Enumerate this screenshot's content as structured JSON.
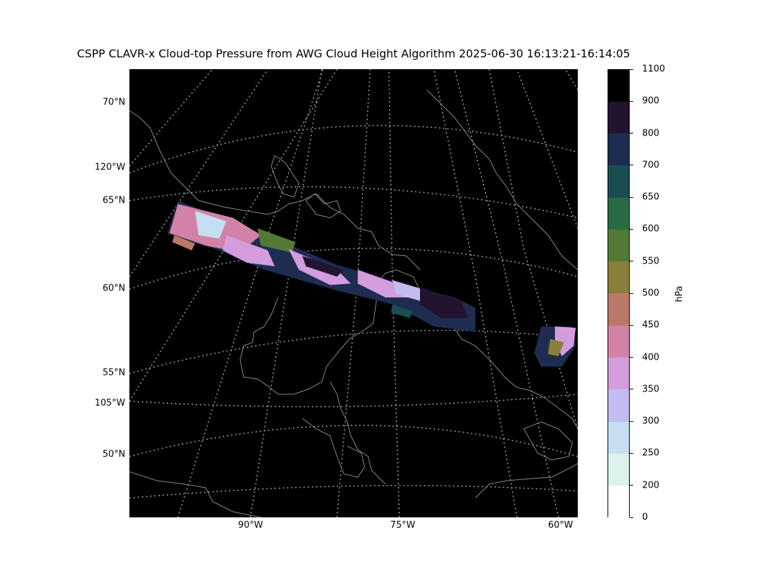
{
  "title": "CSPP CLAVR-x Cloud-top Pressure from AWG Cloud Height Algorithm 2025-06-30 16:13:21-16:14:05",
  "map": {
    "background": "#000000",
    "coastline_color": "#8a8a8a",
    "graticule_color": "#9a9a9a",
    "lat_labels": [
      "70°N",
      "65°N",
      "60°N",
      "55°N",
      "50°N"
    ],
    "lon_labels_left": [
      "120°W",
      "105°W"
    ],
    "lon_labels_bottom": [
      "90°W",
      "75°W",
      "60°W"
    ]
  },
  "colorbar": {
    "label": "hPa",
    "ticks": [
      "0",
      "200",
      "250",
      "300",
      "350",
      "400",
      "450",
      "500",
      "550",
      "600",
      "650",
      "700",
      "800",
      "900",
      "1100"
    ],
    "colors": [
      "#ffffff",
      "#dcf2ec",
      "#c5def2",
      "#c3bcf0",
      "#d39cdc",
      "#d282a6",
      "#bb7868",
      "#8a7f3a",
      "#537a34",
      "#2a6b44",
      "#1a4c52",
      "#1e2c52",
      "#22142e",
      "#000000"
    ]
  }
}
